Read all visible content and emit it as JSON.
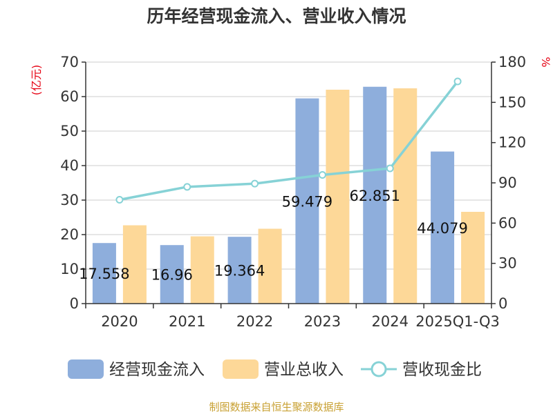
{
  "chart_data": {
    "type": "bar",
    "title": "历年经营现金流入、营业收入情况",
    "left_unit": "(亿元)",
    "right_unit": "%",
    "categories": [
      "2020",
      "2021",
      "2022",
      "2023",
      "2024",
      "2025Q1-Q3"
    ],
    "series": [
      {
        "name": "经营现金流入",
        "type": "bar",
        "axis": "left",
        "color": "#8eaedc",
        "values": [
          17.558,
          16.96,
          19.364,
          59.479,
          62.851,
          44.079
        ],
        "labels": [
          "17.558",
          "16.96",
          "19.364",
          "59.479",
          "62.851",
          "44.079"
        ]
      },
      {
        "name": "营业总收入",
        "type": "bar",
        "axis": "left",
        "color": "#fdd898",
        "values": [
          22.7,
          19.5,
          21.7,
          62.0,
          62.4,
          26.6
        ]
      },
      {
        "name": "营收现金比",
        "type": "line",
        "axis": "right",
        "color": "#86d2d6",
        "values": [
          77.4,
          87.0,
          89.4,
          95.9,
          100.8,
          165.6
        ]
      }
    ],
    "left_axis": {
      "ylim": [
        0,
        70
      ],
      "ticks": [
        "0",
        "10",
        "20",
        "30",
        "40",
        "50",
        "60",
        "70"
      ]
    },
    "right_axis": {
      "ylim": [
        0,
        180
      ],
      "ticks": [
        "0",
        "30",
        "60",
        "90",
        "120",
        "150",
        "180"
      ]
    },
    "grid": true,
    "legend_position": "bottom"
  },
  "source_text": "制图数据来自恒生聚源数据库"
}
